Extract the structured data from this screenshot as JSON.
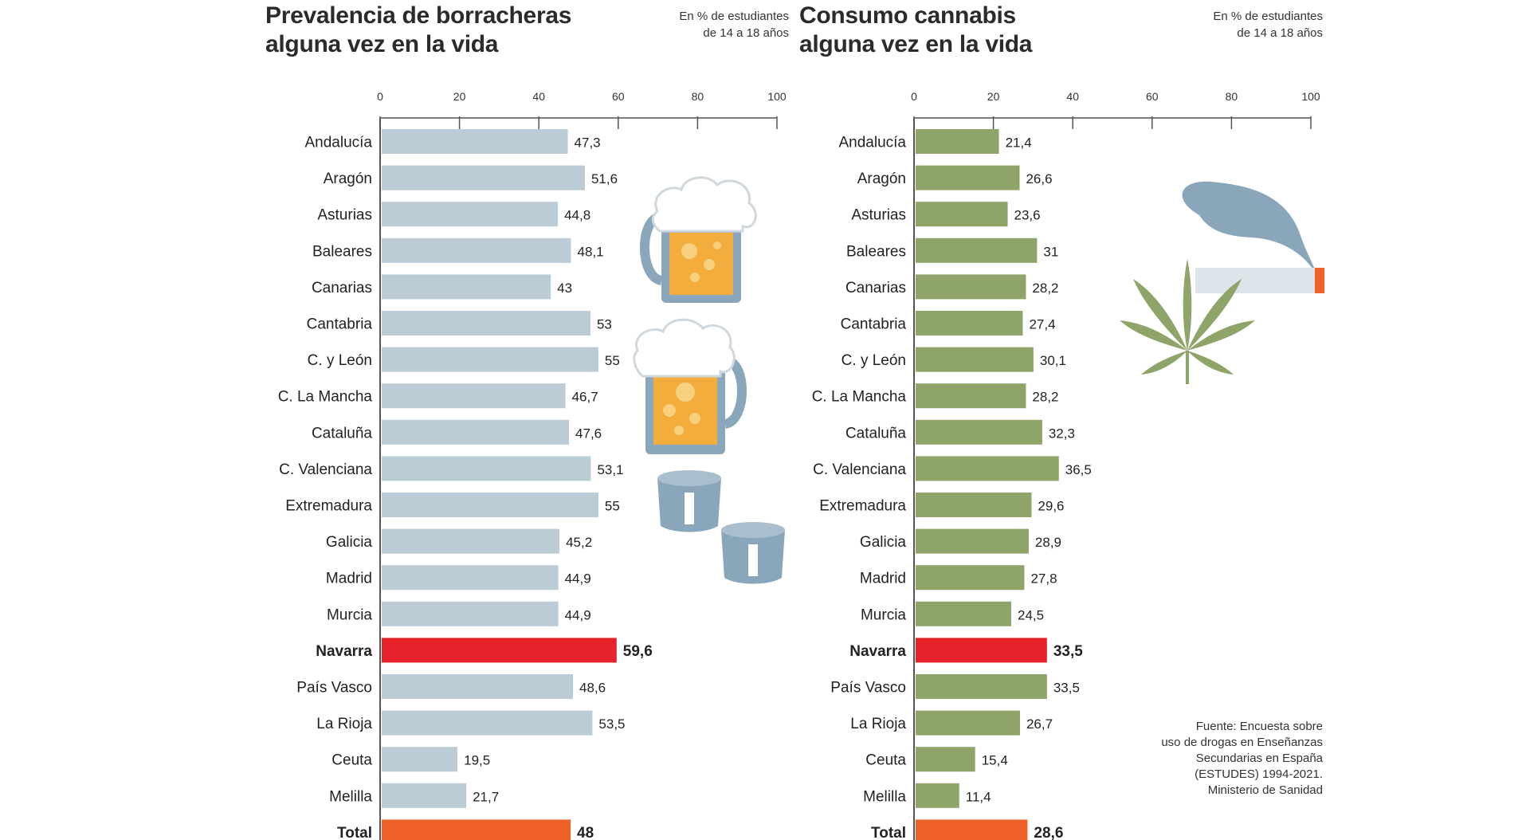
{
  "colors": {
    "left_bar": "#bcccd6",
    "right_bar": "#8ea468",
    "highlight": "#e8222b",
    "total": "#ee6128",
    "axis": "#555555",
    "beer_foam": "#ffffff",
    "beer_liquid": "#f2ad3c",
    "glass": "#8aa6ba",
    "smoke": "#8aa6ba",
    "leaf": "#8ea468",
    "cigarette_tip": "#ee6128"
  },
  "left": {
    "title_line1": "Prevalencia de borracheras",
    "title_line2": "alguna vez en la vida",
    "subtitle_line1": "En % de estudiantes",
    "subtitle_line2": "de 14 a 18 años",
    "icons": [
      "beer-mug-icon",
      "beer-mug-icon",
      "shot-glass-icon",
      "shot-glass-icon"
    ]
  },
  "right": {
    "title_line1": "Consumo cannabis",
    "title_line2": "alguna vez en la vida",
    "subtitle_line1": "En % de estudiantes",
    "subtitle_line2": "de 14 a 18 años",
    "icons": [
      "smoke-icon",
      "cigarette-icon",
      "cannabis-leaf-icon"
    ]
  },
  "source": {
    "line1": "Fuente: Encuesta sobre",
    "line2": "uso de drogas en Enseñanzas",
    "line3": "Secundarias en España",
    "line4": "(ESTUDES) 1994-2021.",
    "line5": "Ministerio de Sanidad"
  },
  "chart_data": [
    {
      "type": "bar",
      "orientation": "horizontal",
      "title": "Prevalencia de borracheras alguna vez en la vida",
      "subtitle": "En % de estudiantes de 14 a 18 años",
      "xlim": [
        0,
        100
      ],
      "ticks": [
        0,
        20,
        40,
        60,
        80,
        100
      ],
      "tick_labels": [
        "0",
        "20",
        "40",
        "60",
        "80",
        "100"
      ],
      "categories": [
        "Andalucía",
        "Aragón",
        "Asturias",
        "Baleares",
        "Canarias",
        "Cantabria",
        "C. y León",
        "C. La Mancha",
        "Cataluña",
        "C. Valenciana",
        "Extremadura",
        "Galicia",
        "Madrid",
        "Murcia",
        "Navarra",
        "País Vasco",
        "La Rioja",
        "Ceuta",
        "Melilla",
        "Total"
      ],
      "values": [
        47.3,
        51.6,
        44.8,
        48.1,
        43,
        53,
        55,
        46.7,
        47.6,
        53.1,
        55,
        45.2,
        44.9,
        44.9,
        59.6,
        48.6,
        53.5,
        19.5,
        21.7,
        48
      ],
      "value_labels": [
        "47,3",
        "51,6",
        "44,8",
        "48,1",
        "43",
        "53",
        "55",
        "46,7",
        "47,6",
        "53,1",
        "55",
        "45,2",
        "44,9",
        "44,9",
        "59,6",
        "48,6",
        "53,5",
        "19,5",
        "21,7",
        "48"
      ],
      "highlight": "Navarra",
      "total": "Total"
    },
    {
      "type": "bar",
      "orientation": "horizontal",
      "title": "Consumo cannabis alguna vez en la vida",
      "subtitle": "En % de estudiantes de 14 a 18 años",
      "xlim": [
        0,
        100
      ],
      "ticks": [
        0,
        20,
        40,
        60,
        80,
        100
      ],
      "tick_labels": [
        "0",
        "20",
        "40",
        "60",
        "80",
        "100"
      ],
      "categories": [
        "Andalucía",
        "Aragón",
        "Asturias",
        "Baleares",
        "Canarias",
        "Cantabria",
        "C. y León",
        "C. La Mancha",
        "Cataluña",
        "C. Valenciana",
        "Extremadura",
        "Galicia",
        "Madrid",
        "Murcia",
        "Navarra",
        "País Vasco",
        "La Rioja",
        "Ceuta",
        "Melilla",
        "Total"
      ],
      "values": [
        21.4,
        26.6,
        23.6,
        31,
        28.2,
        27.4,
        30.1,
        28.2,
        32.3,
        36.5,
        29.6,
        28.9,
        27.8,
        24.5,
        33.5,
        33.5,
        26.7,
        15.4,
        11.4,
        28.6
      ],
      "value_labels": [
        "21,4",
        "26,6",
        "23,6",
        "31",
        "28,2",
        "27,4",
        "30,1",
        "28,2",
        "32,3",
        "36,5",
        "29,6",
        "28,9",
        "27,8",
        "24,5",
        "33,5",
        "33,5",
        "26,7",
        "15,4",
        "11,4",
        "28,6"
      ],
      "highlight": "Navarra",
      "total": "Total"
    }
  ]
}
